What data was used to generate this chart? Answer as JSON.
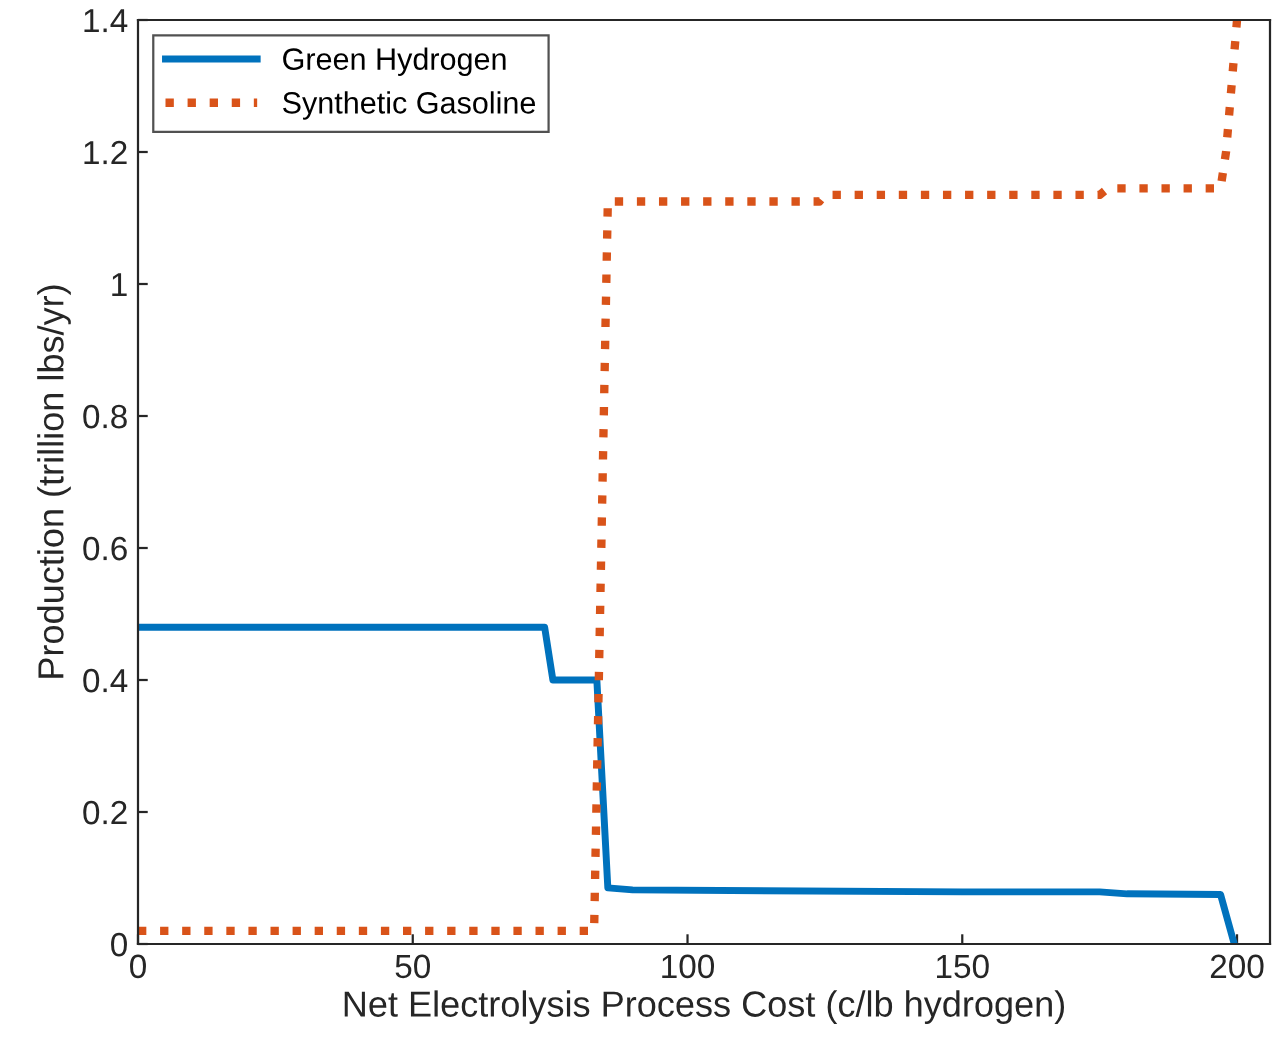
{
  "chart_data": {
    "type": "line",
    "xlabel": "Net Electrolysis Process Cost (c/lb hydrogen)",
    "ylabel": "Production (trillion lbs/yr)",
    "xlim": [
      0,
      206
    ],
    "xticks": [
      0,
      50,
      100,
      150,
      200
    ],
    "ylim": [
      0,
      1.4
    ],
    "yticks": [
      0,
      {
        "value": 0.2,
        "label": "0.2"
      },
      {
        "value": 0.4,
        "label": "0.4"
      },
      {
        "value": 0.6,
        "label": "0.6"
      },
      {
        "value": 0.8,
        "label": "0.8"
      },
      1,
      {
        "value": 1.2,
        "label": "1.2"
      },
      {
        "value": 1.4,
        "label": "1.4"
      }
    ],
    "grid": false,
    "legend": "top left",
    "marker": "none",
    "series": [
      {
        "name": "Green Hydrogen",
        "color": "#0072bd",
        "line_style": "solid",
        "x": [
          0,
          74,
          75.5,
          83.5,
          85.5,
          90,
          150,
          175,
          180,
          197,
          199.5
        ],
        "values": [
          0.48,
          0.48,
          0.4,
          0.4,
          0.085,
          0.082,
          0.079,
          0.079,
          0.076,
          0.075,
          0
        ]
      },
      {
        "name": "Synthetic Gasoline",
        "color": "#d95319",
        "line_style": "dotted",
        "x": [
          0,
          83,
          85.5,
          124,
          125,
          175,
          176.5,
          197,
          198,
          200
        ],
        "values": [
          0.02,
          0.02,
          1.125,
          1.125,
          1.135,
          1.135,
          1.145,
          1.145,
          1.2,
          1.4
        ]
      }
    ]
  }
}
